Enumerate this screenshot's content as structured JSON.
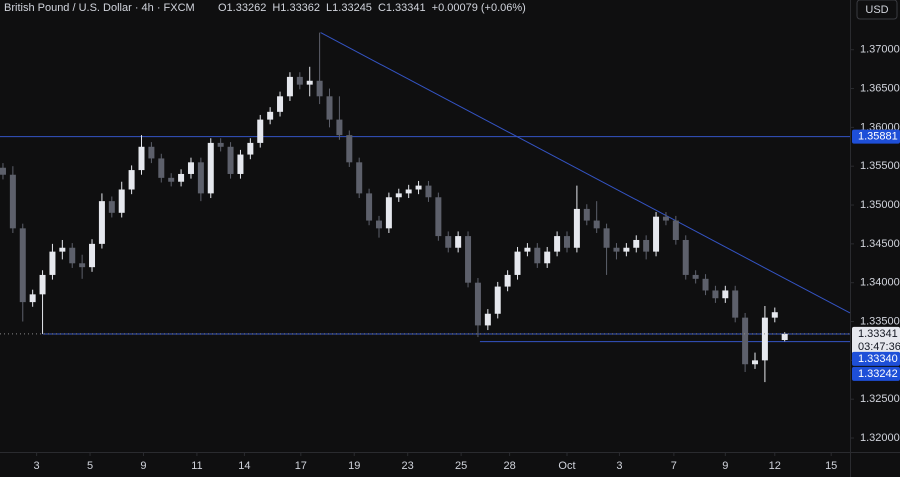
{
  "chart_data": {
    "type": "candlestick",
    "header": {
      "title": "British Pound / U.S. Dollar · 4h · FXCM",
      "ohlc": [
        "O1.33262",
        "H1.33362",
        "L1.33245",
        "C1.33341",
        "+0.00079 (+0.06%)"
      ],
      "currency": "USD"
    },
    "up_color": "#e6e8ee",
    "down_color": "#5d606b",
    "line_color": "#3454c4",
    "label_color": "#1e4fd8",
    "open": [
      1.3548,
      1.3539,
      1.347,
      1.3375,
      1.3385,
      1.341,
      1.344,
      1.3445,
      1.3425,
      1.342,
      1.345,
      1.3505,
      1.349,
      1.352,
      1.3545,
      1.3575,
      1.356,
      1.3535,
      1.353,
      1.354,
      1.3555,
      1.3515,
      1.358,
      1.3575,
      1.354,
      1.3565,
      1.358,
      1.361,
      1.362,
      1.364,
      1.3665,
      1.3655,
      1.366,
      1.364,
      1.361,
      1.359,
      1.3555,
      1.3515,
      1.348,
      1.347,
      1.351,
      1.3515,
      1.352,
      1.3525,
      1.351,
      1.346,
      1.3445,
      1.346,
      1.34,
      1.3345,
      1.336,
      1.3395,
      1.341,
      1.344,
      1.3445,
      1.3425,
      1.344,
      1.346,
      1.3445,
      1.3495,
      1.348,
      1.347,
      1.3445,
      1.344,
      1.3445,
      1.3455,
      1.344,
      1.3485,
      1.348,
      1.3455,
      1.341,
      1.3405,
      1.339,
      1.338,
      1.339,
      1.3355,
      1.3295,
      1.33,
      1.3355,
      1.33262
    ],
    "high": [
      1.3554,
      1.355,
      1.3476,
      1.3391,
      1.3416,
      1.345,
      1.3455,
      1.3451,
      1.3436,
      1.3456,
      1.3515,
      1.3511,
      1.353,
      1.3551,
      1.359,
      1.3581,
      1.3566,
      1.3541,
      1.3546,
      1.3561,
      1.3561,
      1.3586,
      1.3586,
      1.3581,
      1.3571,
      1.3586,
      1.3616,
      1.3626,
      1.3646,
      1.3671,
      1.3671,
      1.3678,
      1.3722,
      1.365,
      1.364,
      1.3596,
      1.3561,
      1.3521,
      1.3486,
      1.3516,
      1.3521,
      1.3526,
      1.3531,
      1.3531,
      1.3516,
      1.3466,
      1.3466,
      1.3466,
      1.3406,
      1.3366,
      1.3401,
      1.3416,
      1.3446,
      1.3451,
      1.3451,
      1.3446,
      1.3466,
      1.3466,
      1.3525,
      1.3501,
      1.3505,
      1.3476,
      1.3451,
      1.3451,
      1.3461,
      1.3461,
      1.3491,
      1.3491,
      1.3486,
      1.3461,
      1.3416,
      1.3411,
      1.3396,
      1.3396,
      1.3396,
      1.3361,
      1.331,
      1.337,
      1.3368,
      1.33362
    ],
    "low": [
      1.3533,
      1.3464,
      1.335,
      1.3369,
      1.3334,
      1.3404,
      1.343,
      1.3419,
      1.3405,
      1.3414,
      1.3444,
      1.3484,
      1.3484,
      1.3514,
      1.3539,
      1.3554,
      1.3529,
      1.3524,
      1.3524,
      1.3534,
      1.3505,
      1.3509,
      1.3569,
      1.3534,
      1.3534,
      1.3559,
      1.3574,
      1.3604,
      1.3614,
      1.3634,
      1.3649,
      1.364,
      1.363,
      1.36,
      1.3584,
      1.3549,
      1.3509,
      1.3474,
      1.3458,
      1.3464,
      1.3504,
      1.3509,
      1.3514,
      1.3504,
      1.3454,
      1.3439,
      1.3439,
      1.3394,
      1.333,
      1.3339,
      1.3354,
      1.3389,
      1.3404,
      1.3434,
      1.3419,
      1.3419,
      1.3434,
      1.3439,
      1.3439,
      1.3474,
      1.3464,
      1.341,
      1.343,
      1.3434,
      1.3439,
      1.343,
      1.3434,
      1.3474,
      1.3449,
      1.3404,
      1.3399,
      1.3384,
      1.3374,
      1.3374,
      1.3349,
      1.3285,
      1.3289,
      1.3272,
      1.3349,
      1.33245
    ],
    "close": [
      1.3539,
      1.347,
      1.3375,
      1.3385,
      1.341,
      1.344,
      1.3445,
      1.3425,
      1.342,
      1.345,
      1.3505,
      1.349,
      1.352,
      1.3545,
      1.3575,
      1.356,
      1.3535,
      1.353,
      1.354,
      1.3555,
      1.3515,
      1.358,
      1.3575,
      1.354,
      1.3565,
      1.358,
      1.361,
      1.362,
      1.364,
      1.3665,
      1.3655,
      1.366,
      1.364,
      1.361,
      1.359,
      1.3555,
      1.3515,
      1.348,
      1.347,
      1.351,
      1.3515,
      1.352,
      1.3525,
      1.351,
      1.346,
      1.3445,
      1.346,
      1.34,
      1.3345,
      1.336,
      1.3395,
      1.341,
      1.344,
      1.3445,
      1.3425,
      1.344,
      1.346,
      1.3445,
      1.3495,
      1.348,
      1.347,
      1.3445,
      1.344,
      1.3445,
      1.3455,
      1.344,
      1.3485,
      1.348,
      1.3455,
      1.341,
      1.3405,
      1.339,
      1.338,
      1.339,
      1.3355,
      1.3295,
      1.33,
      1.3355,
      1.3362,
      1.33341
    ],
    "xlim": [
      -0.3,
      85.6
    ],
    "xticks": [
      {
        "value": 3.4,
        "label": "3"
      },
      {
        "value": 8.8,
        "label": "5"
      },
      {
        "value": 14.2,
        "label": "9"
      },
      {
        "value": 19.6,
        "label": "11"
      },
      {
        "value": 24.4,
        "label": "14"
      },
      {
        "value": 30.1,
        "label": "17"
      },
      {
        "value": 35.5,
        "label": "19"
      },
      {
        "value": 40.9,
        "label": "23"
      },
      {
        "value": 46.3,
        "label": "25"
      },
      {
        "value": 51.2,
        "label": "28"
      },
      {
        "value": 57,
        "label": "Oct"
      },
      {
        "value": 62.3,
        "label": "3"
      },
      {
        "value": 67.8,
        "label": "7"
      },
      {
        "value": 73,
        "label": "9"
      },
      {
        "value": 78,
        "label": "12"
      },
      {
        "value": 83.7,
        "label": "15"
      }
    ],
    "ylim": [
      1.3182,
      1.3764
    ],
    "yticks": [
      {
        "value": 1.37,
        "label": "1.37000"
      },
      {
        "value": 1.365,
        "label": "1.36500"
      },
      {
        "value": 1.36,
        "label": "1.36000"
      },
      {
        "value": 1.355,
        "label": "1.35500"
      },
      {
        "value": 1.35,
        "label": "1.35000"
      },
      {
        "value": 1.345,
        "label": "1.34500"
      },
      {
        "value": 1.34,
        "label": "1.34000"
      },
      {
        "value": 1.335,
        "label": "1.33500"
      },
      {
        "value": 1.33,
        "label": "1.33000"
      },
      {
        "value": 1.325,
        "label": "1.32500"
      },
      {
        "value": 1.32,
        "label": "1.32000"
      }
    ],
    "levels": [
      {
        "value": 1.35881,
        "label": "1.35881",
        "from": -0.3
      },
      {
        "value": 1.3334,
        "label": "1.33340",
        "from": 4.0
      },
      {
        "value": 1.33242,
        "label": "1.33242",
        "from": 48.2
      }
    ],
    "trendline": {
      "x": [
        32.1,
        85.6
      ],
      "y": [
        1.3722,
        1.3361
      ]
    },
    "last_price": {
      "value": 1.33341,
      "label": "1.33341",
      "countdown": "03:47:36"
    }
  }
}
